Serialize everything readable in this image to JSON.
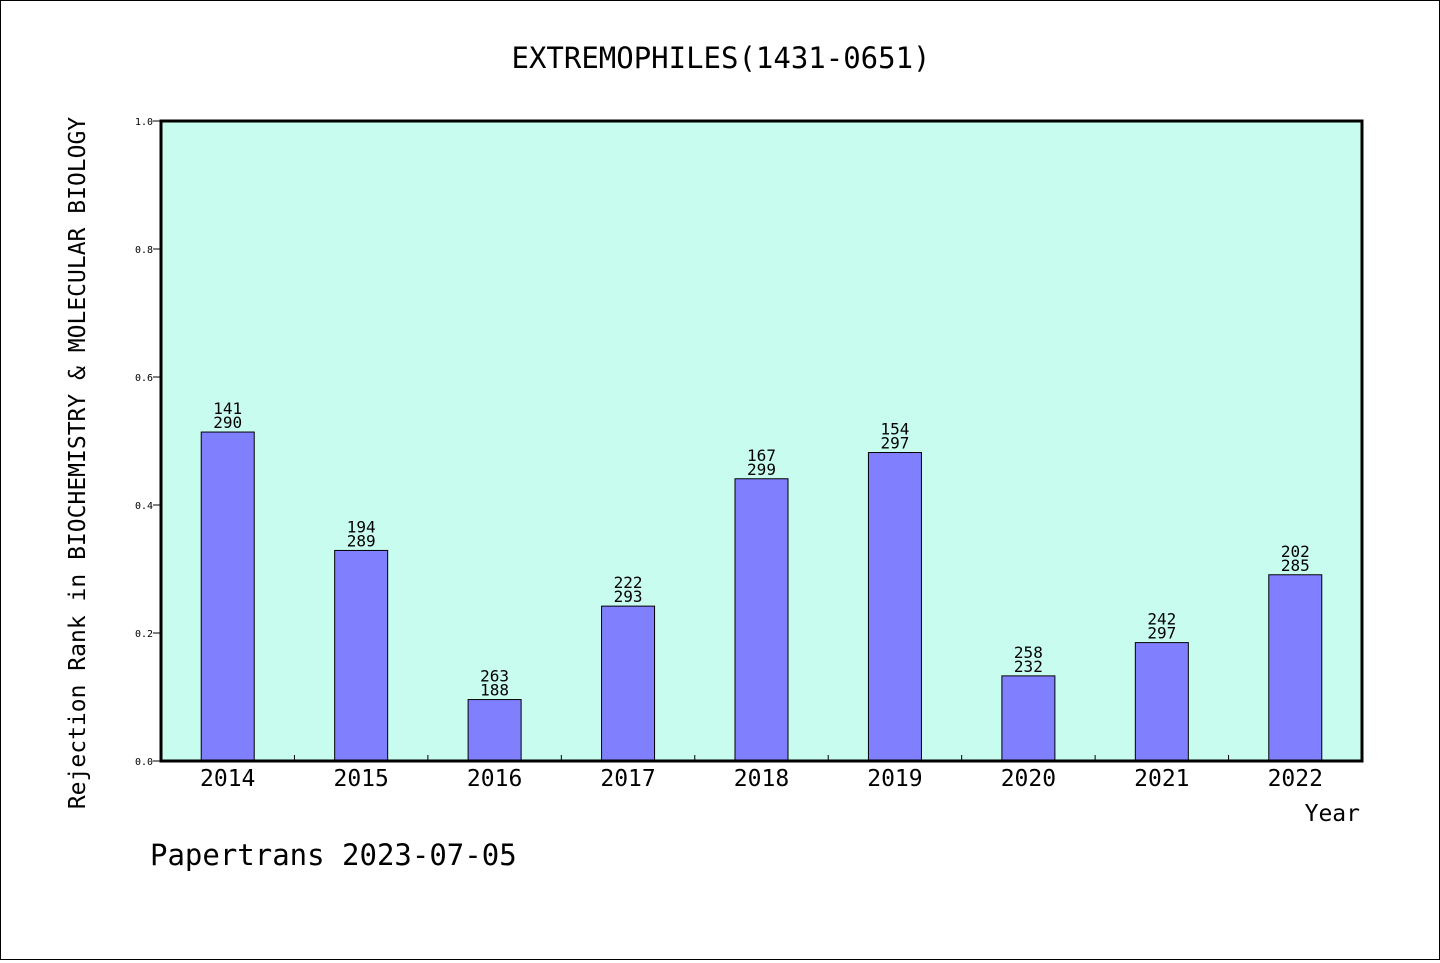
{
  "chart_data": {
    "type": "bar",
    "title": "EXTREMOPHILES(1431-0651)",
    "xlabel": "Year",
    "ylabel": "Rejection Rank in BIOCHEMISTRY & MOLECULAR BIOLOGY",
    "ylim": [
      0,
      1.0
    ],
    "yticks": [
      "0.0",
      "0.2",
      "0.4",
      "0.6",
      "0.8",
      "1.0"
    ],
    "categories": [
      "2014",
      "2015",
      "2016",
      "2017",
      "2018",
      "2019",
      "2020",
      "2021",
      "2022"
    ],
    "values": [
      0.514,
      0.329,
      0.096,
      0.242,
      0.441,
      0.482,
      0.133,
      0.185,
      0.291
    ],
    "labels_top": [
      "141",
      "194",
      "263",
      "222",
      "167",
      "154",
      "258",
      "242",
      "202"
    ],
    "labels_bottom": [
      "290",
      "289",
      "188",
      "293",
      "299",
      "297",
      "232",
      "297",
      "285"
    ],
    "grid": false,
    "colors": {
      "plot_background": "#c8fcee",
      "bar_fill": "#8080ff",
      "bar_stroke": "#000000"
    }
  },
  "footer": {
    "credit": "Papertrans 2023-07-05"
  }
}
